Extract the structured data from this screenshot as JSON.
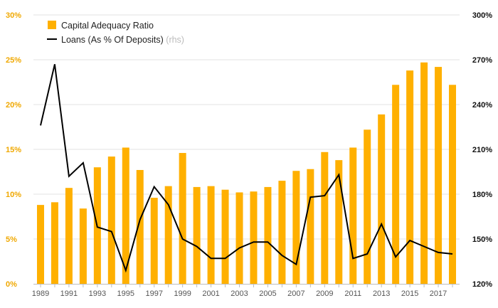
{
  "chart_data": {
    "type": "bar",
    "categories": [
      "1989",
      "1990",
      "1991",
      "1992",
      "1993",
      "1994",
      "1995",
      "1996",
      "1997",
      "1998",
      "1999",
      "2000",
      "2001",
      "2002",
      "2003",
      "2004",
      "2005",
      "2006",
      "2007",
      "2008",
      "2009",
      "2010",
      "2011",
      "2012",
      "2013",
      "2014",
      "2015",
      "2016",
      "2017",
      "2018"
    ],
    "x_tick_labels": [
      "1989",
      "1991",
      "1993",
      "1995",
      "1997",
      "1999",
      "2001",
      "2003",
      "2005",
      "2007",
      "2009",
      "2011",
      "2013",
      "2015",
      "2017"
    ],
    "series": [
      {
        "name": "Capital Adequacy Ratio",
        "type": "bar",
        "axis": "left",
        "color": "#ffb000",
        "values": [
          8.8,
          9.1,
          10.7,
          8.4,
          13.0,
          14.2,
          15.2,
          12.7,
          9.6,
          10.9,
          14.6,
          10.8,
          10.9,
          10.5,
          10.2,
          10.3,
          10.8,
          11.5,
          12.6,
          12.8,
          14.7,
          13.8,
          15.2,
          17.2,
          18.9,
          22.2,
          23.8,
          24.7,
          24.2,
          22.2
        ]
      },
      {
        "name": "Loans (As % Of Deposits)",
        "name_suffix": "(rhs)",
        "type": "line",
        "axis": "right",
        "color": "#000000",
        "values": [
          226,
          267,
          192,
          201,
          158,
          155,
          129,
          163,
          185,
          173,
          150,
          145,
          137,
          137,
          144,
          148,
          148,
          139,
          133,
          178,
          179,
          193,
          137,
          140,
          160,
          138,
          149,
          145,
          141,
          140
        ]
      }
    ],
    "y_left": {
      "ticks": [
        "0%",
        "5%",
        "10%",
        "15%",
        "20%",
        "25%",
        "30%"
      ],
      "range": [
        0,
        30
      ]
    },
    "y_right": {
      "ticks": [
        "120%",
        "150%",
        "180%",
        "210%",
        "240%",
        "270%",
        "300%"
      ],
      "range": [
        120,
        300
      ]
    },
    "grid": true,
    "legend": "top-left",
    "title": "",
    "xlabel": "",
    "ylabel": ""
  }
}
